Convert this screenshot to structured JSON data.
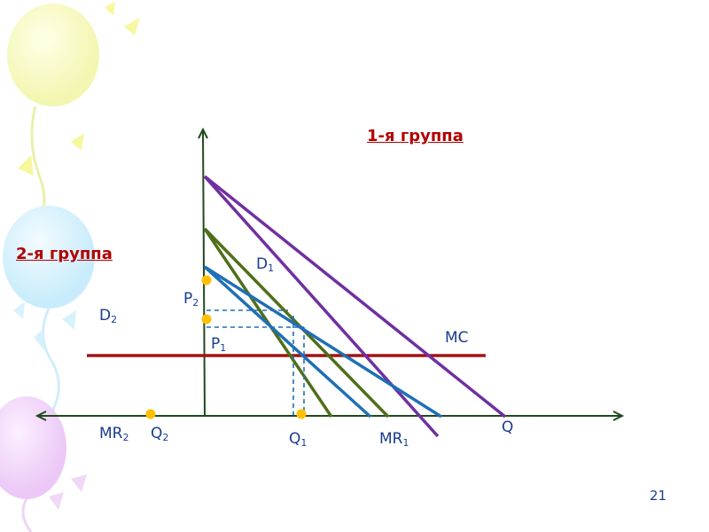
{
  "titles": {
    "group1": "1-я группа",
    "group2": "2-я группа"
  },
  "labels": {
    "D1": {
      "base": "D",
      "sub": "1"
    },
    "D2": {
      "base": "D",
      "sub": "2"
    },
    "P1": {
      "base": "P",
      "sub": "1"
    },
    "P2": {
      "base": "P",
      "sub": "2"
    },
    "Q1": {
      "base": "Q",
      "sub": "1"
    },
    "Q2": {
      "base": "Q",
      "sub": "2"
    },
    "MR1": {
      "base": "MR",
      "sub": "1"
    },
    "MR2": {
      "base": "MR",
      "sub": "2"
    },
    "MC": "MC",
    "Q": "Q"
  },
  "page_number": "21",
  "colors": {
    "axis": "#1f4a1f",
    "purple": "#7030a0",
    "green": "#4f6f1a",
    "blue": "#1f6fb5",
    "mc": "#a01414",
    "dashed": "#1f6fb5",
    "point": "#ffc000",
    "title": "#b30000",
    "text": "#1a3b8f"
  }
}
